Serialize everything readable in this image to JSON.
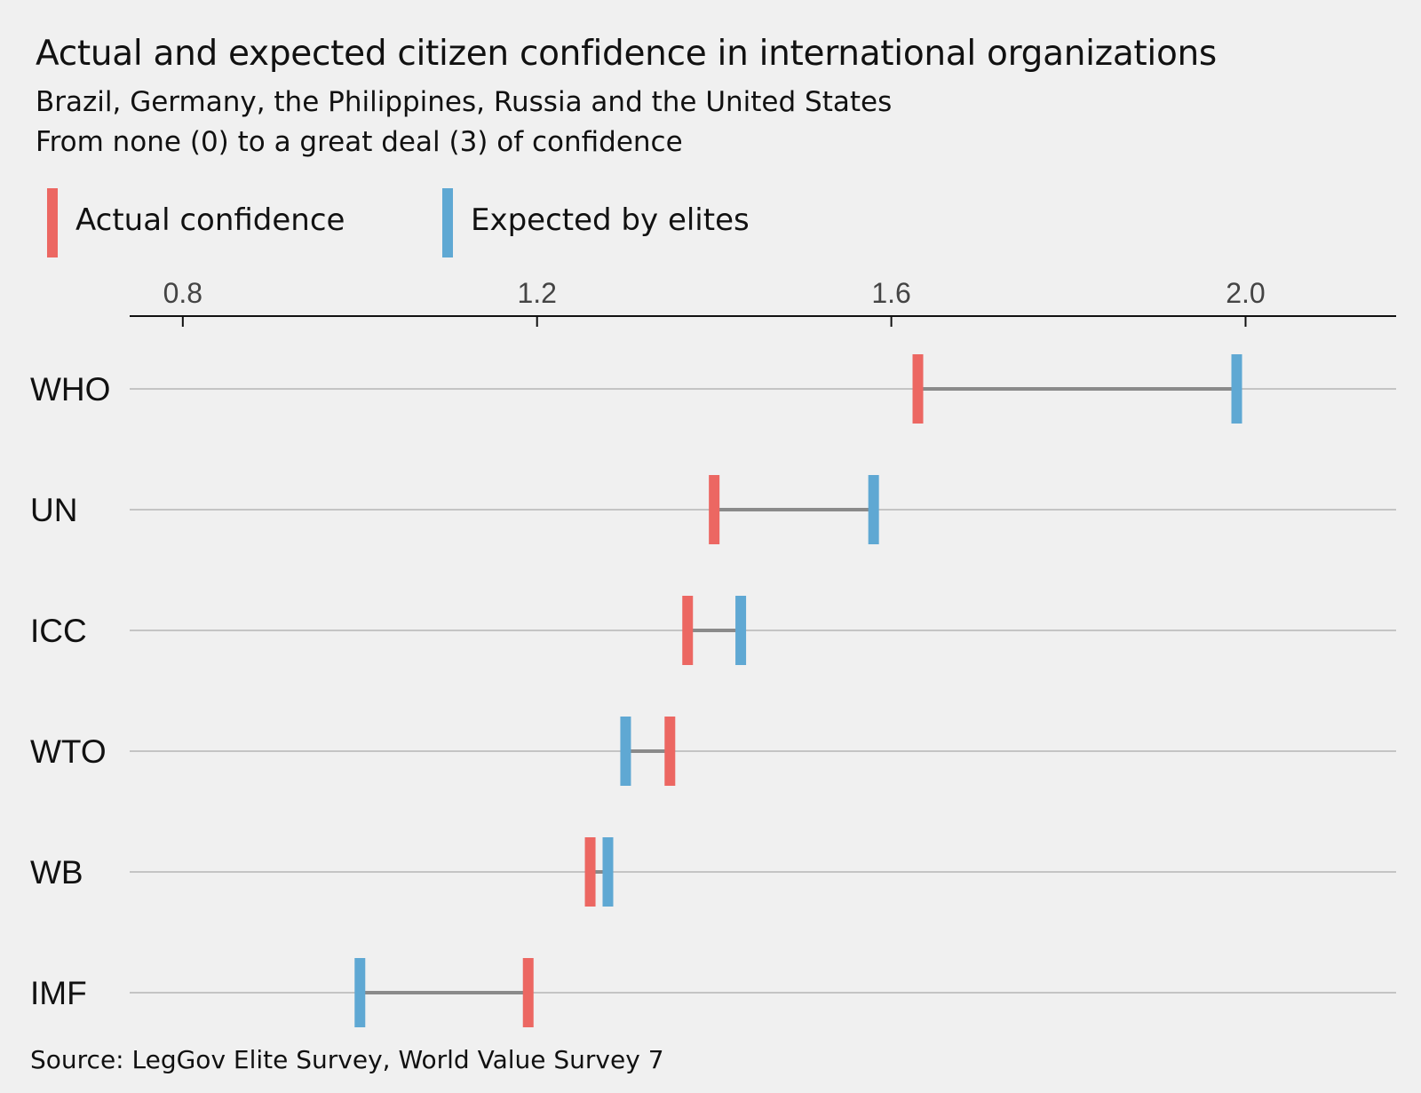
{
  "header": {
    "title": "Actual and expected citizen confidence in international organizations",
    "subtitle_line1": "Brazil, Germany, the Philippines, Russia and the United States",
    "subtitle_line2": "From none (0) to a great deal (3) of confidence"
  },
  "legend": {
    "actual_label": "Actual confidence",
    "expected_label": "Expected by elites"
  },
  "colors": {
    "actual": "#ec6762",
    "expected": "#5fa8d3",
    "connector": "#8a8a8a",
    "background": "#f0f0f0"
  },
  "footer": {
    "source": "Source: LegGov Elite Survey, World Value Survey 7"
  },
  "chart_data": {
    "type": "dumbbell",
    "title": "Actual and expected citizen confidence in international organizations",
    "xlim": [
      0.74,
      2.17
    ],
    "xticks": [
      0.8,
      1.2,
      1.6,
      2.0
    ],
    "xtick_labels": [
      "0.8",
      "1.2",
      "1.6",
      "2.0"
    ],
    "axis_position": "top",
    "grid": "horizontal lines per category",
    "legend_position": "top-left",
    "categories": [
      "WHO",
      "UN",
      "ICC",
      "WTO",
      "WB",
      "IMF"
    ],
    "series": [
      {
        "name": "Actual confidence",
        "values": [
          1.63,
          1.4,
          1.37,
          1.35,
          1.26,
          1.19
        ]
      },
      {
        "name": "Expected by elites",
        "values": [
          1.99,
          1.58,
          1.43,
          1.3,
          1.28,
          1.0
        ]
      }
    ]
  }
}
